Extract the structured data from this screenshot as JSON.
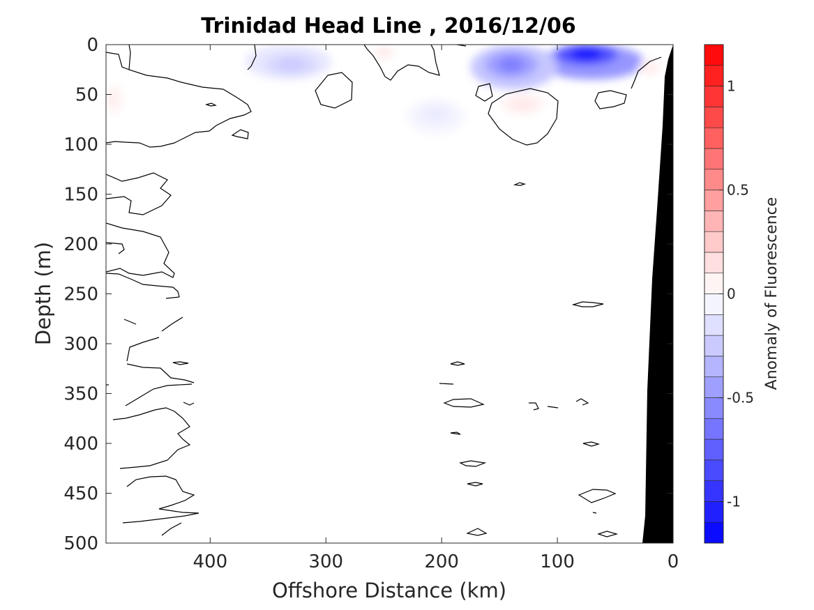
{
  "chart_data": {
    "type": "heatmap",
    "subtype": "filled-contour section",
    "title": "Trinidad Head Line , 2016/12/06",
    "xlabel": "Offshore Distance (km)",
    "ylabel": "Depth (m)",
    "xlim": [
      490,
      0
    ],
    "ylim": [
      0,
      500
    ],
    "x_reversed": true,
    "y_reversed": true,
    "xticks": [
      400,
      300,
      200,
      100,
      0
    ],
    "yticks": [
      0,
      50,
      100,
      150,
      200,
      250,
      300,
      350,
      400,
      450,
      500
    ],
    "colorbar": {
      "label": "Anomaly of Fluorescence",
      "limits": [
        -1.2,
        1.2
      ],
      "ticks": [
        1,
        0.5,
        0,
        -0.5,
        -1
      ],
      "tick_labels": [
        "1",
        "0.5",
        "0",
        "-0.5",
        "-1"
      ],
      "levels": [
        -1.2,
        -1.1,
        -1.0,
        -0.9,
        -0.8,
        -0.7,
        -0.6,
        -0.5,
        -0.4,
        -0.3,
        -0.2,
        -0.1,
        0,
        0.1,
        0.2,
        0.3,
        0.4,
        0.5,
        0.6,
        0.7,
        0.8,
        0.9,
        1.0,
        1.1,
        1.2
      ],
      "colormap": "blue-white-red"
    },
    "features": [
      {
        "kind": "negative_anomaly",
        "x_center": 75,
        "depth_center": 10,
        "x_range": [
          115,
          25
        ],
        "depth_range": [
          0,
          35
        ],
        "peak": -1.1
      },
      {
        "kind": "negative_anomaly",
        "x_center": 140,
        "depth_center": 20,
        "x_range": [
          175,
          100
        ],
        "depth_range": [
          0,
          45
        ],
        "peak": -0.6
      },
      {
        "kind": "negative_anomaly",
        "x_center": 330,
        "depth_center": 20,
        "x_range": [
          370,
          295
        ],
        "depth_range": [
          0,
          35
        ],
        "peak": -0.25
      },
      {
        "kind": "negative_anomaly",
        "x_center": 205,
        "depth_center": 70,
        "x_range": [
          230,
          180
        ],
        "depth_range": [
          55,
          90
        ],
        "peak": -0.1
      },
      {
        "kind": "positive_anomaly",
        "x_center": 250,
        "depth_center": 8,
        "x_range": [
          260,
          240
        ],
        "depth_range": [
          0,
          15
        ],
        "peak": 0.12
      },
      {
        "kind": "positive_anomaly",
        "x_center": 485,
        "depth_center": 55,
        "x_range": [
          490,
          475
        ],
        "depth_range": [
          40,
          70
        ],
        "peak": 0.1
      },
      {
        "kind": "positive_anomaly",
        "x_center": 130,
        "depth_center": 60,
        "x_range": [
          150,
          110
        ],
        "depth_range": [
          48,
          70
        ],
        "peak": 0.12
      },
      {
        "kind": "positive_anomaly",
        "x_center": 20,
        "depth_center": 25,
        "x_range": [
          30,
          10
        ],
        "depth_range": [
          15,
          30
        ],
        "peak": 0.12
      }
    ],
    "zero_contour": "black line, irregular; dense near x>400 and surface layer",
    "bathymetry": {
      "color": "#000000",
      "points": [
        [
          0,
          0
        ],
        [
          0,
          500
        ],
        [
          25,
          500
        ],
        [
          28,
          300
        ],
        [
          10,
          90
        ],
        [
          0,
          10
        ]
      ]
    }
  }
}
